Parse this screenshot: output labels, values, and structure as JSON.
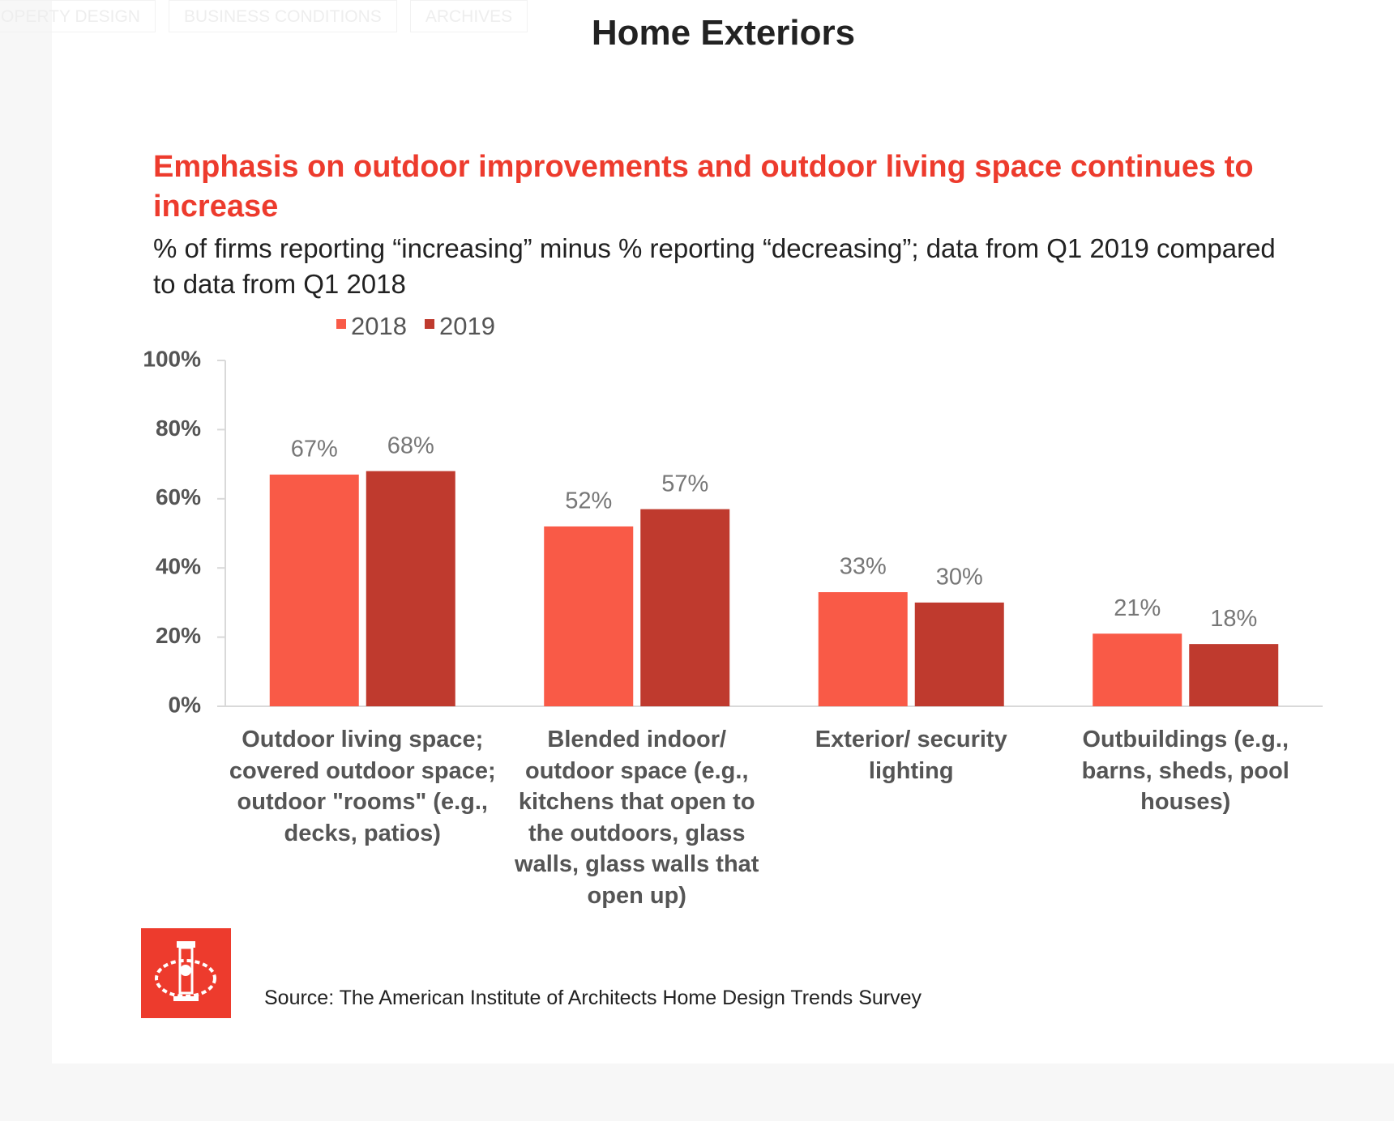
{
  "nav": [
    "OPERTY DESIGN",
    "BUSINESS CONDITIONS",
    "ARCHIVES"
  ],
  "heading": "Home Exteriors",
  "source": "Source: The American Institute of Architects Home Design Trends Survey",
  "chart_data": {
    "type": "bar",
    "title": "Emphasis on outdoor improvements and outdoor living space continues to increase",
    "subtitle": "% of firms reporting “increasing” minus % reporting “decreasing”; data from Q1 2019 compared to data from Q1 2018",
    "categories": [
      "Outdoor living space; covered outdoor space; outdoor \"rooms\" (e.g., decks, patios)",
      "Blended indoor/ outdoor space (e.g., kitchens that open to the outdoors, glass walls, glass walls that open up)",
      "Exterior/ security lighting",
      "Outbuildings (e.g., barns, sheds, pool houses)"
    ],
    "series": [
      {
        "name": "2018",
        "color": "#f95a47",
        "values": [
          67,
          52,
          33,
          21
        ],
        "value_labels": [
          "67%",
          "52%",
          "33%",
          "21%"
        ]
      },
      {
        "name": "2019",
        "color": "#bf3a2e",
        "values": [
          68,
          57,
          30,
          18
        ],
        "value_labels": [
          "68%",
          "57%",
          "30%",
          "18%"
        ]
      }
    ],
    "ylim": [
      0,
      100
    ],
    "yticks": [
      {
        "value": 0,
        "label": "0%"
      },
      {
        "value": 20,
        "label": "20%"
      },
      {
        "value": 40,
        "label": "40%"
      },
      {
        "value": 60,
        "label": "60%"
      },
      {
        "value": 80,
        "label": "80%"
      },
      {
        "value": 100,
        "label": "100%"
      }
    ],
    "grid": false
  }
}
